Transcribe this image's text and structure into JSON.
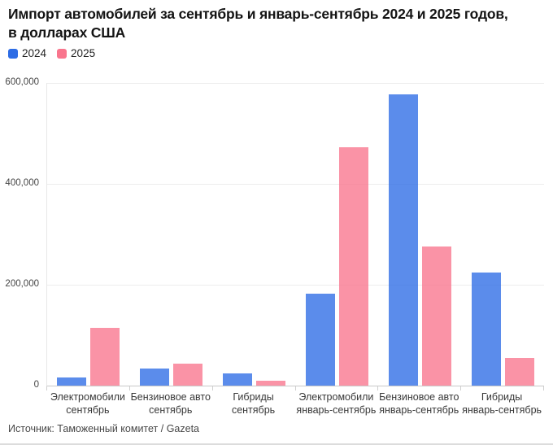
{
  "chart_data": {
    "type": "bar",
    "title": "Импорт автомобилей за сентябрь и январь-сентябрь 2024 и 2025 годов,\nв долларах США",
    "xlabel": "",
    "ylabel": "",
    "categories": [
      "Электромобили\nсентябрь",
      "Бензиновое авто\nсентябрь",
      "Гибриды\nсентябрь",
      "Электромобили\nянварь-сентябрь",
      "Бензиновое авто\nянварь-сентябрь",
      "Гибриды\nянварь-сентябрь"
    ],
    "series": [
      {
        "name": "2024",
        "color": "#2d6ce5",
        "values": [
          16000,
          34000,
          24000,
          182000,
          578000,
          224000
        ]
      },
      {
        "name": "2025",
        "color": "#f9758d",
        "values": [
          115000,
          43000,
          9000,
          473000,
          276000,
          55000
        ]
      }
    ],
    "ylim": [
      0,
      600000
    ],
    "yticks": [
      0,
      200000,
      400000,
      600000
    ],
    "ytick_labels": [
      "0",
      "200,000",
      "400,000",
      "600,000"
    ],
    "grid": true,
    "legend_position": "top-left",
    "bar_opacity": 0.78
  },
  "footer": {
    "source": "Источник: Таможенный комитет / Gazeta"
  }
}
